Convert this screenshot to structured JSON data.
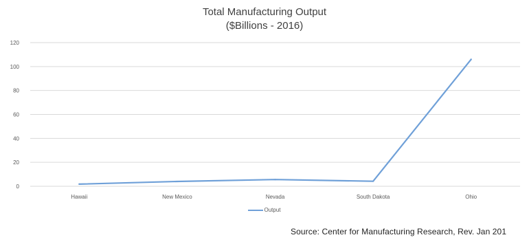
{
  "chart_data": {
    "type": "line",
    "title": "Total Manufacturing Output",
    "subtitle": "($Billions - 2016)",
    "xlabel": "",
    "ylabel": "",
    "categories": [
      "Hawaii",
      "New Mexico",
      "Nevada",
      "South Dakota",
      "Ohio"
    ],
    "series": [
      {
        "name": "Output",
        "values": [
          1.8,
          4.0,
          5.6,
          4.2,
          106.0
        ],
        "color": "#6fa0d8"
      }
    ],
    "ylim": [
      0,
      120
    ],
    "yticks": [
      0,
      20,
      40,
      60,
      80,
      100,
      120
    ],
    "grid": true,
    "legend_position": "bottom"
  },
  "source_text": "Source:  Center for Manufacturing Research, Rev. Jan 201"
}
